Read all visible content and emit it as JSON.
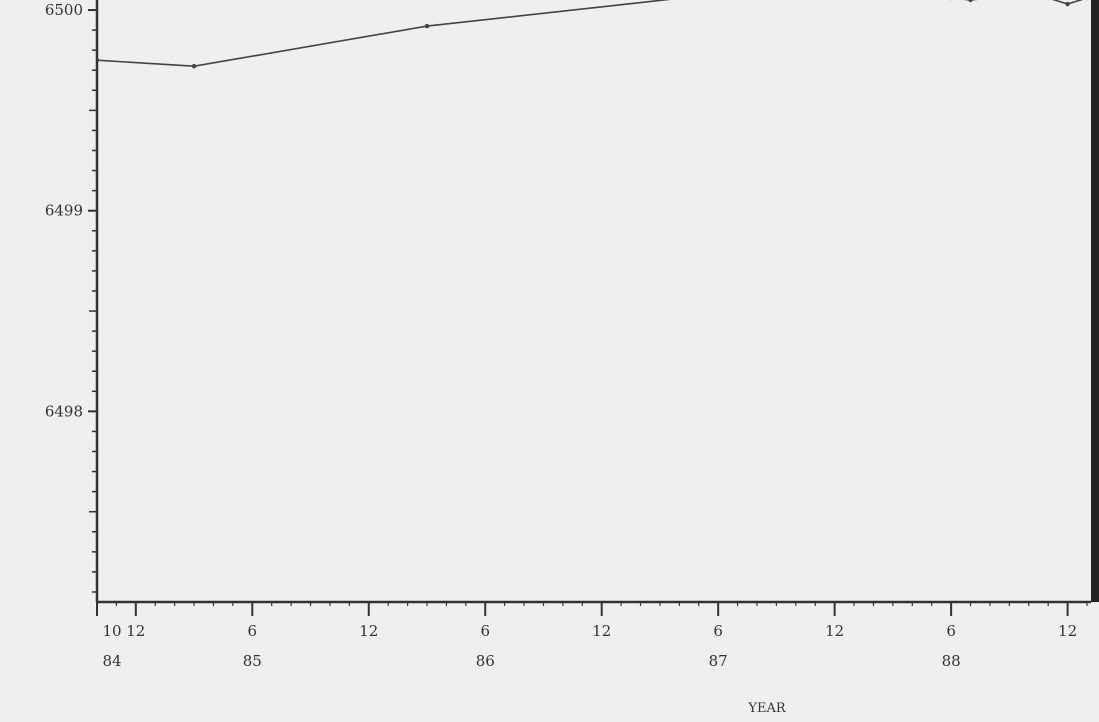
{
  "chart_data": {
    "type": "line",
    "title": "",
    "xlabel": "YEAR",
    "ylabel": "",
    "ylim": [
      6497.05,
      6500.05
    ],
    "xlim": [
      "1984-10",
      "1989-01"
    ],
    "y_ticks": [
      6498,
      6499,
      6500
    ],
    "y_tick_labels": [
      "6498",
      "6499",
      "6500"
    ],
    "x_ticks": [
      {
        "date": "1984-10",
        "month": "10",
        "year": "84"
      },
      {
        "date": "1984-12",
        "month": "12",
        "year": ""
      },
      {
        "date": "1985-06",
        "month": "6",
        "year": "85"
      },
      {
        "date": "1985-12",
        "month": "12",
        "year": ""
      },
      {
        "date": "1986-06",
        "month": "6",
        "year": "86"
      },
      {
        "date": "1986-12",
        "month": "12",
        "year": ""
      },
      {
        "date": "1987-06",
        "month": "6",
        "year": "87"
      },
      {
        "date": "1987-12",
        "month": "12",
        "year": ""
      },
      {
        "date": "1988-06",
        "month": "6",
        "year": "88"
      },
      {
        "date": "1988-12",
        "month": "12",
        "year": ""
      }
    ],
    "grid": false,
    "series": [
      {
        "points": [
          {
            "x": "1984-10",
            "y": 6499.75
          },
          {
            "x": "1985-03",
            "y": 6499.72
          },
          {
            "x": "1986-03",
            "y": 6499.92
          },
          {
            "x": "1987-06",
            "y": 6500.08
          },
          {
            "x": "1988-01",
            "y": 6500.15
          },
          {
            "x": "1988-05",
            "y": 6500.1
          },
          {
            "x": "1988-06",
            "y": 6500.06
          },
          {
            "x": "1988-07",
            "y": 6500.05
          },
          {
            "x": "1988-09",
            "y": 6500.07
          },
          {
            "x": "1988-10",
            "y": 6500.08
          },
          {
            "x": "1988-11",
            "y": 6500.06
          },
          {
            "x": "1988-12",
            "y": 6500.03
          },
          {
            "x": "1989-01",
            "y": 6500.06
          }
        ],
        "color": "#444444"
      }
    ]
  }
}
